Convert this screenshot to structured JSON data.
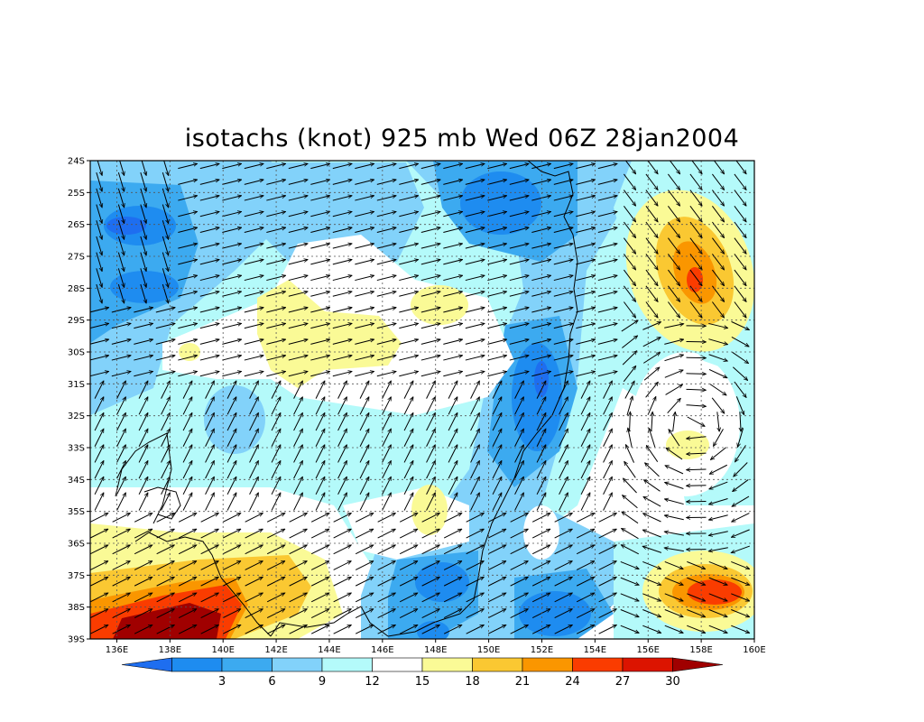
{
  "title": "isotachs (knot) 925 mb Wed 06Z 28jan2004",
  "map": {
    "lat_labels": [
      "24S",
      "25S",
      "26S",
      "27S",
      "28S",
      "29S",
      "30S",
      "31S",
      "32S",
      "33S",
      "34S",
      "35S",
      "36S",
      "37S",
      "38S",
      "39S"
    ],
    "lon_labels": [
      "136E",
      "138E",
      "140E",
      "142E",
      "144E",
      "146E",
      "148E",
      "150E",
      "152E",
      "154E",
      "156E",
      "158E",
      "160E"
    ],
    "lon_range": [
      135,
      160
    ],
    "lat_range": [
      -24,
      -39
    ],
    "grid": "dotted"
  },
  "colorbar": {
    "labels": [
      "3",
      "6",
      "9",
      "12",
      "15",
      "18",
      "21",
      "24",
      "27",
      "30"
    ],
    "colors": [
      "#1e6ef0",
      "#1e8cf0",
      "#3caaf0",
      "#82d2fa",
      "#b4fafa",
      "#ffffff",
      "#fafa96",
      "#fac832",
      "#fa9600",
      "#fa3c00",
      "#dc1400",
      "#a00000"
    ]
  },
  "colors": {
    "c0": "#1e6ef0",
    "c1": "#1e8cf0",
    "c2": "#3caaf0",
    "c3": "#82d2fa",
    "c4": "#b4fafa",
    "c5": "#ffffff",
    "c6": "#fafa96",
    "c7": "#fac832",
    "c8": "#fa9600",
    "c9": "#fa3c00",
    "c10": "#dc1400",
    "c11": "#a00000"
  }
}
